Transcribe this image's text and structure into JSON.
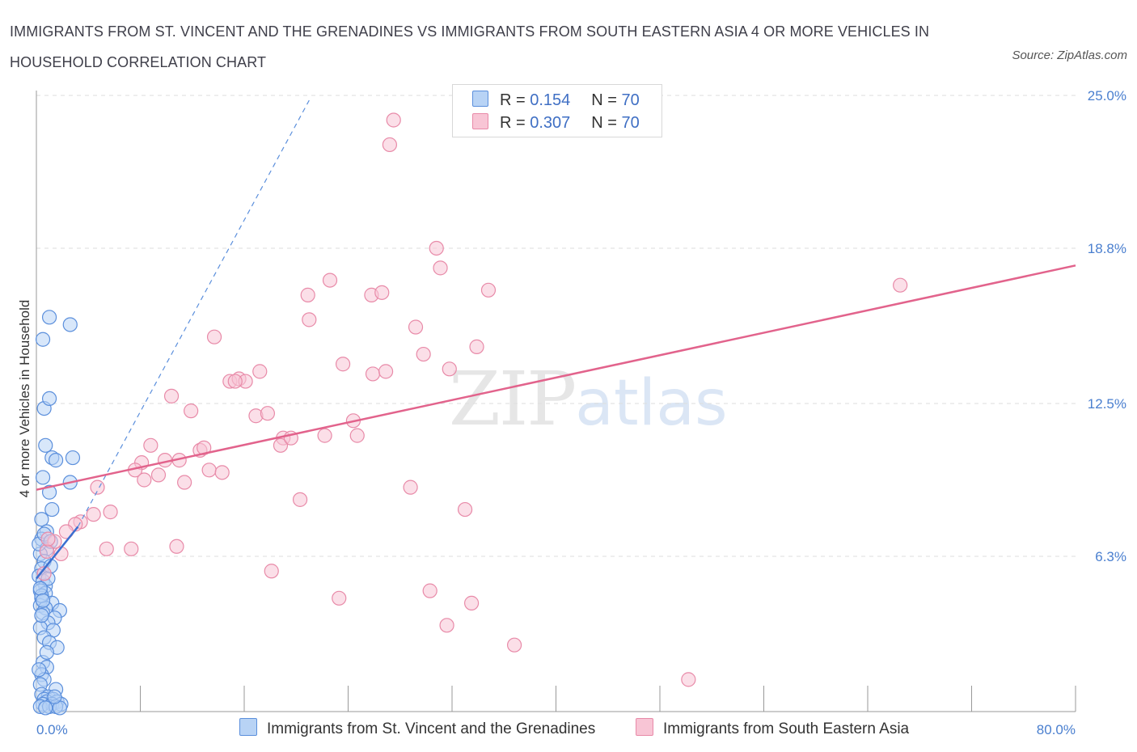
{
  "header": {
    "title": "IMMIGRANTS FROM ST. VINCENT AND THE GRENADINES VS IMMIGRANTS FROM SOUTH EASTERN ASIA 4 OR MORE VEHICLES IN HOUSEHOLD CORRELATION CHART",
    "source": "Source: ZipAtlas.com"
  },
  "watermark": {
    "zip": "ZIP",
    "atlas": "atlas"
  },
  "legend": {
    "rows": [
      {
        "r_label": "R = ",
        "r_value": "0.154",
        "n_label": "N = ",
        "n_value": "70"
      },
      {
        "r_label": "R = ",
        "r_value": "0.307",
        "n_label": "N = ",
        "n_value": "70"
      }
    ]
  },
  "colors": {
    "blue_fill": "#b8d3f5",
    "blue_stroke": "#5b8fdc",
    "blue_line": "#3a6fd0",
    "pink_fill": "#f8c5d5",
    "pink_stroke": "#e88aa8",
    "pink_line": "#e2638c",
    "grid": "#dddddd",
    "axis_label": "#4a7fcf"
  },
  "chart_data": {
    "type": "scatter",
    "xlabel": "",
    "ylabel": "4 or more Vehicles in Household",
    "xlim": [
      0,
      80
    ],
    "ylim": [
      0,
      25
    ],
    "x_tick_labels": [
      {
        "value": 0,
        "label": "0.0%"
      },
      {
        "value": 80,
        "label": "80.0%"
      }
    ],
    "y_tick_labels": [
      {
        "value": 6.3,
        "label": "6.3%"
      },
      {
        "value": 12.5,
        "label": "12.5%"
      },
      {
        "value": 18.8,
        "label": "18.8%"
      },
      {
        "value": 25.0,
        "label": "25.0%"
      }
    ],
    "grid": true,
    "legend_position": "top-center",
    "series": [
      {
        "name": "Immigrants from St. Vincent and the Grenadines",
        "color": "blue",
        "trend": {
          "x": [
            0,
            3.2
          ],
          "y": [
            5.4,
            7.5
          ]
        },
        "trend_extension": {
          "x": [
            3.2,
            21
          ],
          "y": [
            7.5,
            24.8
          ]
        },
        "points": [
          [
            0.5,
            15.1
          ],
          [
            1.0,
            16.0
          ],
          [
            2.6,
            15.7
          ],
          [
            0.6,
            12.3
          ],
          [
            1.0,
            12.7
          ],
          [
            0.7,
            10.8
          ],
          [
            1.2,
            10.3
          ],
          [
            1.5,
            10.2
          ],
          [
            2.8,
            10.3
          ],
          [
            0.5,
            9.5
          ],
          [
            2.6,
            9.3
          ],
          [
            1.0,
            8.9
          ],
          [
            1.2,
            8.2
          ],
          [
            0.4,
            7.8
          ],
          [
            0.8,
            7.3
          ],
          [
            0.4,
            7.0
          ],
          [
            0.8,
            6.6
          ],
          [
            0.3,
            6.4
          ],
          [
            0.6,
            6.1
          ],
          [
            0.4,
            5.8
          ],
          [
            0.2,
            5.5
          ],
          [
            0.5,
            5.3
          ],
          [
            0.7,
            5.1
          ],
          [
            0.3,
            4.9
          ],
          [
            0.7,
            4.8
          ],
          [
            0.4,
            4.6
          ],
          [
            1.2,
            4.4
          ],
          [
            0.3,
            4.3
          ],
          [
            0.7,
            4.2
          ],
          [
            1.8,
            4.1
          ],
          [
            0.5,
            4.0
          ],
          [
            1.4,
            3.8
          ],
          [
            0.9,
            3.6
          ],
          [
            0.3,
            3.4
          ],
          [
            1.3,
            3.3
          ],
          [
            0.6,
            3.0
          ],
          [
            1.0,
            2.8
          ],
          [
            1.6,
            2.6
          ],
          [
            0.5,
            2.0
          ],
          [
            0.8,
            1.8
          ],
          [
            0.4,
            1.5
          ],
          [
            0.6,
            1.3
          ],
          [
            0.3,
            1.1
          ],
          [
            1.5,
            0.9
          ],
          [
            0.4,
            0.7
          ],
          [
            0.9,
            0.6
          ],
          [
            0.6,
            0.5
          ],
          [
            1.3,
            0.5
          ],
          [
            0.8,
            0.4
          ],
          [
            1.6,
            0.4
          ],
          [
            0.5,
            0.3
          ],
          [
            1.2,
            0.3
          ],
          [
            1.9,
            0.3
          ],
          [
            0.3,
            0.2
          ],
          [
            1.0,
            0.2
          ],
          [
            1.5,
            0.2
          ],
          [
            0.7,
            0.15
          ],
          [
            1.8,
            0.15
          ],
          [
            0.4,
            4.7
          ],
          [
            0.9,
            5.4
          ],
          [
            0.2,
            6.8
          ],
          [
            0.6,
            7.2
          ],
          [
            1.1,
            6.9
          ],
          [
            0.3,
            5.0
          ],
          [
            0.5,
            4.5
          ],
          [
            1.4,
            0.6
          ],
          [
            0.2,
            1.7
          ],
          [
            0.8,
            2.4
          ],
          [
            0.4,
            3.9
          ],
          [
            1.1,
            5.9
          ]
        ]
      },
      {
        "name": "Immigrants from South Eastern Asia",
        "color": "pink",
        "trend": {
          "x": [
            0,
            80
          ],
          "y": [
            9.0,
            18.1
          ]
        },
        "points": [
          [
            27.5,
            24.0
          ],
          [
            27.2,
            23.0
          ],
          [
            30.8,
            18.8
          ],
          [
            31.1,
            18.0
          ],
          [
            22.6,
            17.5
          ],
          [
            20.9,
            16.9
          ],
          [
            25.8,
            16.9
          ],
          [
            26.6,
            17.0
          ],
          [
            34.8,
            17.1
          ],
          [
            66.5,
            17.3
          ],
          [
            21.0,
            15.9
          ],
          [
            29.2,
            15.6
          ],
          [
            13.7,
            15.2
          ],
          [
            33.9,
            14.8
          ],
          [
            29.8,
            14.5
          ],
          [
            23.6,
            14.1
          ],
          [
            31.8,
            13.9
          ],
          [
            25.9,
            13.7
          ],
          [
            26.9,
            13.8
          ],
          [
            17.2,
            13.8
          ],
          [
            14.9,
            13.4
          ],
          [
            15.6,
            13.5
          ],
          [
            16.1,
            13.4
          ],
          [
            15.3,
            13.4
          ],
          [
            10.4,
            12.8
          ],
          [
            11.9,
            12.2
          ],
          [
            16.9,
            12.0
          ],
          [
            17.8,
            12.1
          ],
          [
            24.4,
            11.8
          ],
          [
            22.2,
            11.2
          ],
          [
            24.7,
            11.2
          ],
          [
            19.0,
            11.1
          ],
          [
            18.8,
            10.8
          ],
          [
            19.6,
            11.1
          ],
          [
            8.8,
            10.8
          ],
          [
            12.6,
            10.6
          ],
          [
            12.9,
            10.7
          ],
          [
            9.9,
            10.2
          ],
          [
            8.1,
            10.1
          ],
          [
            11.0,
            10.2
          ],
          [
            7.6,
            9.8
          ],
          [
            8.3,
            9.4
          ],
          [
            9.4,
            9.6
          ],
          [
            11.4,
            9.3
          ],
          [
            13.3,
            9.8
          ],
          [
            14.3,
            9.7
          ],
          [
            4.7,
            9.1
          ],
          [
            28.8,
            9.1
          ],
          [
            20.3,
            8.6
          ],
          [
            33.0,
            8.2
          ],
          [
            5.7,
            8.1
          ],
          [
            4.4,
            8.0
          ],
          [
            3.4,
            7.7
          ],
          [
            3.0,
            7.6
          ],
          [
            2.3,
            7.3
          ],
          [
            1.4,
            6.9
          ],
          [
            0.8,
            6.5
          ],
          [
            1.9,
            6.4
          ],
          [
            5.4,
            6.6
          ],
          [
            7.3,
            6.6
          ],
          [
            10.8,
            6.7
          ],
          [
            18.1,
            5.7
          ],
          [
            23.3,
            4.6
          ],
          [
            30.3,
            4.9
          ],
          [
            33.5,
            4.4
          ],
          [
            31.6,
            3.5
          ],
          [
            36.8,
            2.7
          ],
          [
            50.2,
            1.3
          ],
          [
            0.6,
            5.6
          ],
          [
            0.9,
            7.0
          ]
        ]
      }
    ]
  },
  "bottom_legend": {
    "items": [
      {
        "label": "Immigrants from St. Vincent and the Grenadines"
      },
      {
        "label": "Immigrants from South Eastern Asia"
      }
    ]
  }
}
